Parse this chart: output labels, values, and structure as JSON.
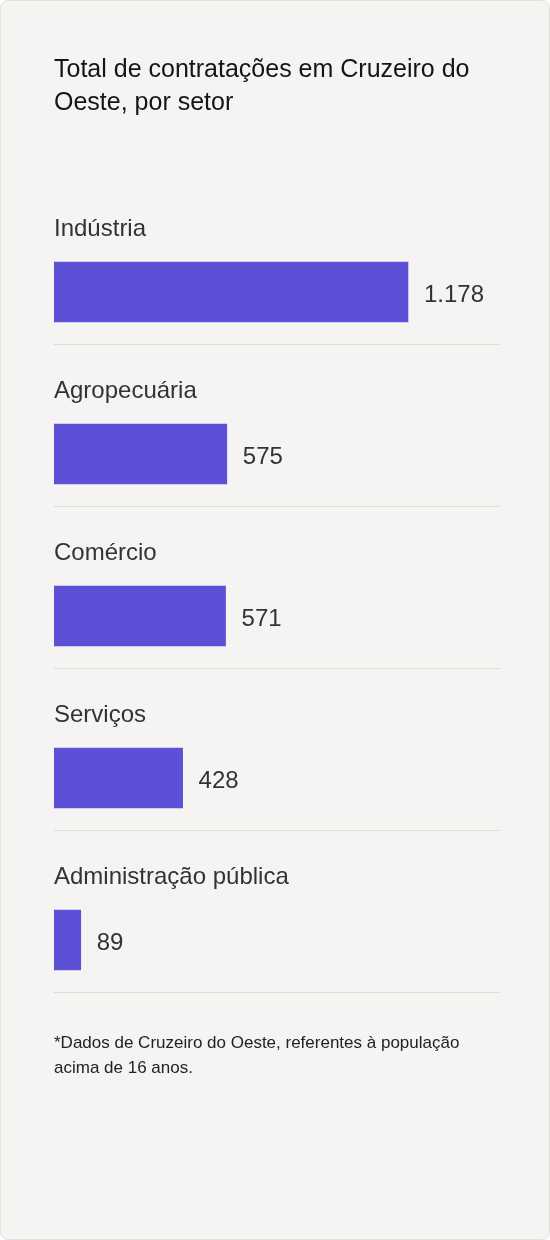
{
  "chart_data": {
    "type": "bar",
    "orientation": "horizontal",
    "title": "Total de contratações em Cruzeiro do Oeste, por setor",
    "categories": [
      "Indústria",
      "Agropecuária",
      "Comércio",
      "Serviços",
      "Administração pública"
    ],
    "values": [
      1178,
      575,
      571,
      428,
      89
    ],
    "value_labels": [
      "1.178",
      "575",
      "571",
      "428",
      "89"
    ],
    "color": "#5b50d6",
    "annotations": [
      "*Dados de Cruzeiro do Oeste, referentes à população acima de 16 anos."
    ]
  }
}
